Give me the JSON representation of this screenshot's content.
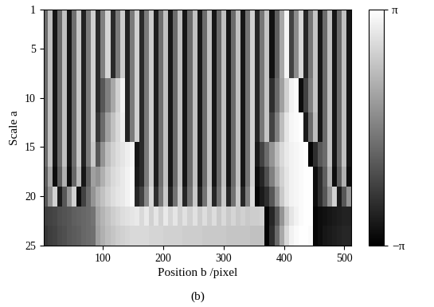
{
  "chart_data": {
    "type": "heatmap",
    "x_label": "Position b /pixel",
    "y_label": "Scale a",
    "caption": "(b)",
    "color": "gray",
    "xlim": [
      1,
      512
    ],
    "ylim": [
      25,
      1
    ],
    "xticks": [
      100,
      200,
      300,
      400,
      500
    ],
    "yticks": [
      1,
      5,
      10,
      15,
      20,
      25
    ],
    "color_range": [
      -3.1416,
      3.1416
    ],
    "colorbar_ticks": [
      {
        "value": -3.1416,
        "label": "−π"
      },
      {
        "value": 3.1416,
        "label": "π"
      }
    ],
    "x": [
      4,
      12,
      20,
      28,
      36,
      44,
      52,
      60,
      68,
      76,
      84,
      92,
      100,
      108,
      116,
      124,
      132,
      140,
      148,
      156,
      164,
      172,
      180,
      188,
      196,
      204,
      212,
      220,
      228,
      236,
      244,
      252,
      260,
      268,
      276,
      284,
      292,
      300,
      308,
      316,
      324,
      332,
      340,
      348,
      356,
      364,
      372,
      380,
      388,
      396,
      404,
      412,
      420,
      428,
      436,
      444,
      452,
      460,
      468,
      476,
      484,
      492,
      500,
      508
    ],
    "y": [
      1,
      6,
      10,
      13,
      16,
      18,
      20,
      22,
      24
    ],
    "cells": [
      [
        -0.5,
        1.6,
        -2.6,
        -0.5,
        1.6,
        -2.6,
        -0.4,
        1.8,
        -2.3,
        -0.1,
        2.0,
        -2.1,
        0.0,
        2.1,
        -2.1,
        -0.1,
        1.9,
        -2.3,
        -0.1,
        2.0,
        -2.1,
        -0.1,
        1.9,
        -2.4,
        -0.4,
        1.6,
        -2.6,
        -0.5,
        1.6,
        -2.6,
        -0.5,
        1.6,
        -2.6,
        -0.5,
        1.6,
        -2.6,
        -0.5,
        1.6,
        -2.6,
        -0.5,
        1.6,
        -2.6,
        -0.3,
        2.0,
        -2.2,
        -0.2,
        1.7,
        -2.7,
        -0.8,
        1.0,
        2.9,
        -1.5,
        0.3,
        2.2,
        -2.2,
        -0.2,
        1.7,
        -2.6,
        -0.5,
        1.6,
        -2.6,
        -0.5,
        1.6,
        -2.6
      ],
      [
        -0.5,
        1.6,
        -2.6,
        -0.5,
        1.6,
        -2.6,
        -0.4,
        1.8,
        -2.3,
        -0.1,
        2.0,
        -2.1,
        0.0,
        2.1,
        -2.1,
        -0.1,
        1.9,
        -2.3,
        -0.1,
        2.0,
        -2.1,
        -0.1,
        1.9,
        -2.4,
        -0.4,
        1.6,
        -2.6,
        -0.5,
        1.6,
        -2.6,
        -0.5,
        1.6,
        -2.6,
        -0.5,
        1.6,
        -2.6,
        -0.5,
        1.6,
        -2.6,
        -0.5,
        1.6,
        -2.6,
        -0.3,
        2.0,
        -2.2,
        -0.2,
        1.7,
        -2.7,
        -0.8,
        1.0,
        2.9,
        -1.5,
        0.3,
        2.2,
        -2.2,
        -0.2,
        1.7,
        -2.6,
        -0.5,
        1.6,
        -2.6,
        -0.5,
        1.6,
        -2.6
      ],
      [
        -0.5,
        1.6,
        -2.6,
        -0.5,
        1.6,
        -2.6,
        -0.4,
        1.8,
        -2.3,
        -0.1,
        2.0,
        -2.1,
        -1.0,
        0.0,
        1.0,
        2.0,
        2.8,
        -2.3,
        -0.1,
        2.0,
        -2.1,
        -0.1,
        1.9,
        -2.4,
        -0.4,
        1.6,
        -2.6,
        -0.5,
        1.6,
        -2.6,
        -0.5,
        1.6,
        -2.6,
        -0.5,
        1.6,
        -2.6,
        -0.5,
        1.6,
        -2.6,
        -0.5,
        1.6,
        -2.6,
        -0.3,
        2.0,
        -2.2,
        -0.2,
        1.7,
        -2.0,
        -0.5,
        0.8,
        2.0,
        2.8,
        3.0,
        -2.8,
        -1.5,
        0.0,
        1.7,
        -2.6,
        -0.5,
        1.6,
        -2.6,
        -0.5,
        1.6,
        -2.6
      ],
      [
        -0.5,
        1.6,
        -2.6,
        -0.5,
        1.6,
        -2.6,
        -0.4,
        1.8,
        -2.3,
        -0.1,
        2.0,
        -1.8,
        -0.5,
        0.8,
        1.6,
        2.2,
        2.7,
        -2.3,
        -0.1,
        2.0,
        -2.1,
        -0.1,
        1.9,
        -2.4,
        -0.4,
        1.6,
        -2.6,
        -0.5,
        1.6,
        -2.6,
        -0.5,
        1.6,
        -2.6,
        -0.5,
        1.6,
        -2.6,
        -0.5,
        1.6,
        -2.6,
        -0.5,
        1.6,
        -2.6,
        -0.3,
        2.0,
        -2.2,
        -0.2,
        1.7,
        -1.5,
        0.0,
        1.5,
        2.5,
        2.9,
        3.0,
        3.1,
        -2.5,
        -0.5,
        1.5,
        -2.6,
        -0.5,
        1.6,
        -2.6,
        -0.5,
        1.6,
        -2.6
      ],
      [
        -0.5,
        1.6,
        -2.6,
        -0.5,
        1.6,
        -2.6,
        -0.4,
        1.8,
        -2.3,
        -0.1,
        1.8,
        -1.0,
        0.5,
        1.5,
        2.0,
        2.3,
        2.5,
        2.7,
        2.9,
        -2.6,
        -2.1,
        -0.1,
        1.9,
        -2.4,
        -0.4,
        1.6,
        -2.6,
        -0.5,
        1.6,
        -2.6,
        -0.5,
        1.6,
        -2.6,
        -0.5,
        1.6,
        -2.6,
        -0.5,
        1.6,
        -2.6,
        -0.5,
        1.6,
        -2.6,
        -0.3,
        2.0,
        -2.5,
        -1.5,
        -0.5,
        0.5,
        1.5,
        2.2,
        2.6,
        2.8,
        2.9,
        3.0,
        3.1,
        -3.0,
        -2.0,
        -1.0,
        -0.5,
        1.6,
        -2.6,
        -0.5,
        1.6,
        -2.6
      ],
      [
        -0.8,
        1.0,
        -2.8,
        -0.8,
        1.2,
        -2.8,
        -0.6,
        1.4,
        -2.6,
        -0.8,
        0.8,
        0.5,
        1.2,
        1.8,
        2.2,
        2.4,
        2.6,
        2.8,
        3.0,
        -2.5,
        -2.1,
        -0.1,
        1.9,
        -2.4,
        -0.4,
        1.6,
        -2.6,
        -0.5,
        1.6,
        -2.6,
        -0.5,
        1.6,
        -2.6,
        -0.5,
        1.6,
        -2.6,
        -0.5,
        1.6,
        -2.6,
        -0.5,
        1.6,
        -2.6,
        -0.3,
        2.0,
        -2.8,
        -2.2,
        -1.2,
        0.0,
        1.2,
        2.0,
        2.5,
        2.8,
        2.9,
        3.0,
        3.1,
        3.1,
        -2.8,
        -2.0,
        -0.8,
        1.2,
        -2.8,
        -0.8,
        1.2,
        -2.8
      ],
      [
        -1.0,
        0.5,
        2.0,
        -2.5,
        -1.0,
        0.5,
        2.0,
        -2.8,
        -1.5,
        -0.5,
        0.5,
        1.2,
        1.6,
        2.0,
        2.3,
        2.5,
        2.6,
        2.8,
        3.0,
        -2.2,
        -1.5,
        0.2,
        2.2,
        -2.0,
        -0.2,
        1.8,
        -2.2,
        -0.3,
        1.8,
        -2.2,
        -0.3,
        1.8,
        -2.2,
        -0.3,
        1.8,
        -2.2,
        -0.3,
        1.8,
        -2.2,
        -0.3,
        1.8,
        -2.2,
        0.0,
        2.2,
        -3.0,
        -2.5,
        -2.0,
        -1.0,
        0.5,
        1.8,
        2.5,
        2.8,
        2.9,
        3.0,
        3.1,
        3.1,
        -2.8,
        -2.0,
        -1.0,
        0.5,
        2.0,
        -2.5,
        -1.0,
        0.5
      ],
      [
        -1.6,
        -1.5,
        -1.4,
        -1.2,
        -1.1,
        -1.0,
        -0.8,
        -0.7,
        -0.6,
        -0.5,
        -0.3,
        0.9,
        1.3,
        1.6,
        1.9,
        2.1,
        2.3,
        2.4,
        2.5,
        2.6,
        2.2,
        2.6,
        2.0,
        2.5,
        2.0,
        2.6,
        2.1,
        2.5,
        2.0,
        2.4,
        2.0,
        2.4,
        1.9,
        2.3,
        1.9,
        2.3,
        1.8,
        2.2,
        1.8,
        2.1,
        1.8,
        2.0,
        1.8,
        1.9,
        1.9,
        2.0,
        -3.0,
        -2.2,
        -1.0,
        0.5,
        1.8,
        2.5,
        2.8,
        3.0,
        3.1,
        3.1,
        -3.0,
        -2.8,
        -2.7,
        -2.6,
        -2.5,
        -2.4,
        -2.3,
        -2.3
      ],
      [
        -1.8,
        -1.6,
        -1.5,
        -1.3,
        -1.2,
        -1.0,
        -0.9,
        -0.8,
        -0.6,
        -0.5,
        -0.4,
        0.8,
        1.2,
        1.5,
        1.7,
        1.9,
        2.0,
        2.1,
        2.2,
        2.2,
        2.2,
        2.2,
        2.1,
        2.1,
        2.1,
        2.0,
        2.0,
        2.0,
        2.0,
        1.9,
        1.9,
        1.9,
        1.9,
        1.8,
        1.8,
        1.8,
        1.8,
        1.8,
        1.7,
        1.7,
        1.7,
        1.7,
        1.7,
        1.6,
        1.6,
        1.6,
        -3.0,
        -2.0,
        -0.5,
        1.0,
        2.2,
        2.8,
        3.0,
        3.1,
        3.1,
        3.0,
        -3.0,
        -2.8,
        -2.6,
        -2.5,
        -2.4,
        -2.3,
        -2.2,
        -2.2
      ]
    ]
  }
}
